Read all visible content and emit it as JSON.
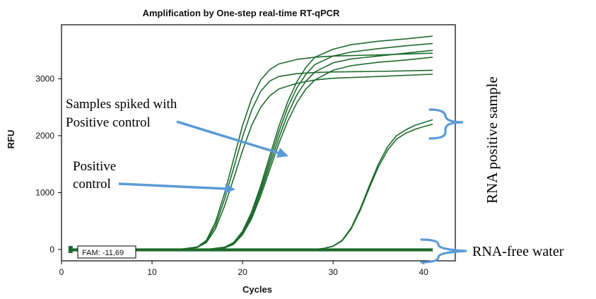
{
  "chart_data": {
    "type": "line",
    "title": "Amplification by One-step real-time RT-qPCR",
    "xlabel": "Cycles",
    "ylabel": "RFU",
    "xlim": [
      0,
      43.5
    ],
    "ylim": [
      -200,
      3950
    ],
    "xticks": [
      0,
      10,
      20,
      30,
      40
    ],
    "yticks": [
      0,
      1000,
      2000,
      3000
    ],
    "grid": false,
    "threshold_label": "FAM: -11,69",
    "series": [
      {
        "group": "Positive control",
        "color": "#1e6b2d",
        "values": [
          [
            1,
            0
          ],
          [
            13,
            0
          ],
          [
            15,
            45
          ],
          [
            16,
            160
          ],
          [
            17,
            480
          ],
          [
            18,
            980
          ],
          [
            19,
            1580
          ],
          [
            20,
            2180
          ],
          [
            21,
            2650
          ],
          [
            22,
            2980
          ],
          [
            23,
            3160
          ],
          [
            24,
            3260
          ],
          [
            26,
            3340
          ],
          [
            28,
            3380
          ],
          [
            30,
            3400
          ],
          [
            35,
            3420
          ],
          [
            41,
            3450
          ]
        ]
      },
      {
        "group": "Positive control",
        "color": "#1e6b2d",
        "values": [
          [
            1,
            0
          ],
          [
            13,
            0
          ],
          [
            15,
            40
          ],
          [
            16,
            140
          ],
          [
            17,
            420
          ],
          [
            18,
            880
          ],
          [
            19,
            1420
          ],
          [
            20,
            1980
          ],
          [
            21,
            2450
          ],
          [
            22,
            2780
          ],
          [
            23,
            2960
          ],
          [
            24,
            3040
          ],
          [
            26,
            3090
          ],
          [
            28,
            3110
          ],
          [
            30,
            3120
          ],
          [
            35,
            3130
          ],
          [
            41,
            3150
          ]
        ]
      },
      {
        "group": "Positive control",
        "color": "#1e6b2d",
        "values": [
          [
            1,
            0
          ],
          [
            13,
            0
          ],
          [
            15,
            35
          ],
          [
            16,
            120
          ],
          [
            17,
            360
          ],
          [
            18,
            760
          ],
          [
            19,
            1240
          ],
          [
            20,
            1740
          ],
          [
            21,
            2180
          ],
          [
            22,
            2500
          ],
          [
            23,
            2700
          ],
          [
            24,
            2820
          ],
          [
            26,
            2920
          ],
          [
            28,
            2980
          ],
          [
            30,
            3010
          ],
          [
            35,
            3040
          ],
          [
            41,
            3080
          ]
        ]
      },
      {
        "group": "Samples spiked with Positive control",
        "color": "#1e6b2d",
        "values": [
          [
            1,
            0
          ],
          [
            16,
            0
          ],
          [
            18,
            40
          ],
          [
            19,
            120
          ],
          [
            20,
            320
          ],
          [
            21,
            660
          ],
          [
            22,
            1120
          ],
          [
            23,
            1640
          ],
          [
            24,
            2160
          ],
          [
            25,
            2600
          ],
          [
            26,
            2950
          ],
          [
            27,
            3200
          ],
          [
            28,
            3380
          ],
          [
            30,
            3520
          ],
          [
            32,
            3600
          ],
          [
            35,
            3660
          ],
          [
            38,
            3700
          ],
          [
            41,
            3750
          ]
        ]
      },
      {
        "group": "Samples spiked with Positive control",
        "color": "#1e6b2d",
        "values": [
          [
            1,
            0
          ],
          [
            16,
            0
          ],
          [
            18,
            35
          ],
          [
            19,
            110
          ],
          [
            20,
            300
          ],
          [
            21,
            620
          ],
          [
            22,
            1060
          ],
          [
            23,
            1560
          ],
          [
            24,
            2060
          ],
          [
            25,
            2500
          ],
          [
            26,
            2840
          ],
          [
            27,
            3080
          ],
          [
            28,
            3250
          ],
          [
            30,
            3400
          ],
          [
            32,
            3470
          ],
          [
            35,
            3530
          ],
          [
            38,
            3580
          ],
          [
            41,
            3620
          ]
        ]
      },
      {
        "group": "Samples spiked with Positive control",
        "color": "#1e6b2d",
        "values": [
          [
            1,
            0
          ],
          [
            16,
            0
          ],
          [
            18,
            30
          ],
          [
            19,
            100
          ],
          [
            20,
            280
          ],
          [
            21,
            580
          ],
          [
            22,
            1000
          ],
          [
            23,
            1480
          ],
          [
            24,
            1960
          ],
          [
            25,
            2380
          ],
          [
            26,
            2720
          ],
          [
            27,
            2960
          ],
          [
            28,
            3120
          ],
          [
            30,
            3280
          ],
          [
            32,
            3350
          ],
          [
            35,
            3400
          ],
          [
            38,
            3450
          ],
          [
            41,
            3500
          ]
        ]
      },
      {
        "group": "Samples spiked with Positive control",
        "color": "#1e6b2d",
        "values": [
          [
            1,
            0
          ],
          [
            16,
            0
          ],
          [
            18,
            25
          ],
          [
            19,
            90
          ],
          [
            20,
            260
          ],
          [
            21,
            540
          ],
          [
            22,
            940
          ],
          [
            23,
            1400
          ],
          [
            24,
            1860
          ],
          [
            25,
            2260
          ],
          [
            26,
            2580
          ],
          [
            27,
            2820
          ],
          [
            28,
            2980
          ],
          [
            30,
            3150
          ],
          [
            32,
            3230
          ],
          [
            35,
            3290
          ],
          [
            38,
            3330
          ],
          [
            41,
            3380
          ]
        ]
      },
      {
        "group": "RNA positive sample",
        "color": "#1e6b2d",
        "values": [
          [
            1,
            0
          ],
          [
            28,
            0
          ],
          [
            29,
            20
          ],
          [
            30,
            60
          ],
          [
            31,
            160
          ],
          [
            32,
            380
          ],
          [
            33,
            720
          ],
          [
            34,
            1120
          ],
          [
            35,
            1500
          ],
          [
            36,
            1800
          ],
          [
            37,
            2000
          ],
          [
            38,
            2100
          ],
          [
            39,
            2180
          ],
          [
            40,
            2230
          ],
          [
            41,
            2280
          ]
        ]
      },
      {
        "group": "RNA positive sample",
        "color": "#1e6b2d",
        "values": [
          [
            1,
            0
          ],
          [
            28,
            0
          ],
          [
            29,
            18
          ],
          [
            30,
            55
          ],
          [
            31,
            150
          ],
          [
            32,
            360
          ],
          [
            33,
            690
          ],
          [
            34,
            1080
          ],
          [
            35,
            1450
          ],
          [
            36,
            1740
          ],
          [
            37,
            1940
          ],
          [
            38,
            2040
          ],
          [
            39,
            2110
          ],
          [
            40,
            2160
          ],
          [
            41,
            2200
          ]
        ]
      },
      {
        "group": "RNA-free water",
        "color": "#1e6b2d",
        "values": [
          [
            1,
            0
          ],
          [
            41,
            0
          ]
        ]
      },
      {
        "group": "RNA-free water",
        "color": "#1e6b2d",
        "values": [
          [
            1,
            -15
          ],
          [
            41,
            -15
          ]
        ]
      }
    ],
    "annotations": [
      {
        "lines": [
          "Samples spiked with",
          "Positive control"
        ]
      },
      {
        "lines": [
          "Positive",
          "control"
        ]
      },
      {
        "text": "RNA positive sample"
      },
      {
        "text": "RNA-free water"
      }
    ]
  }
}
